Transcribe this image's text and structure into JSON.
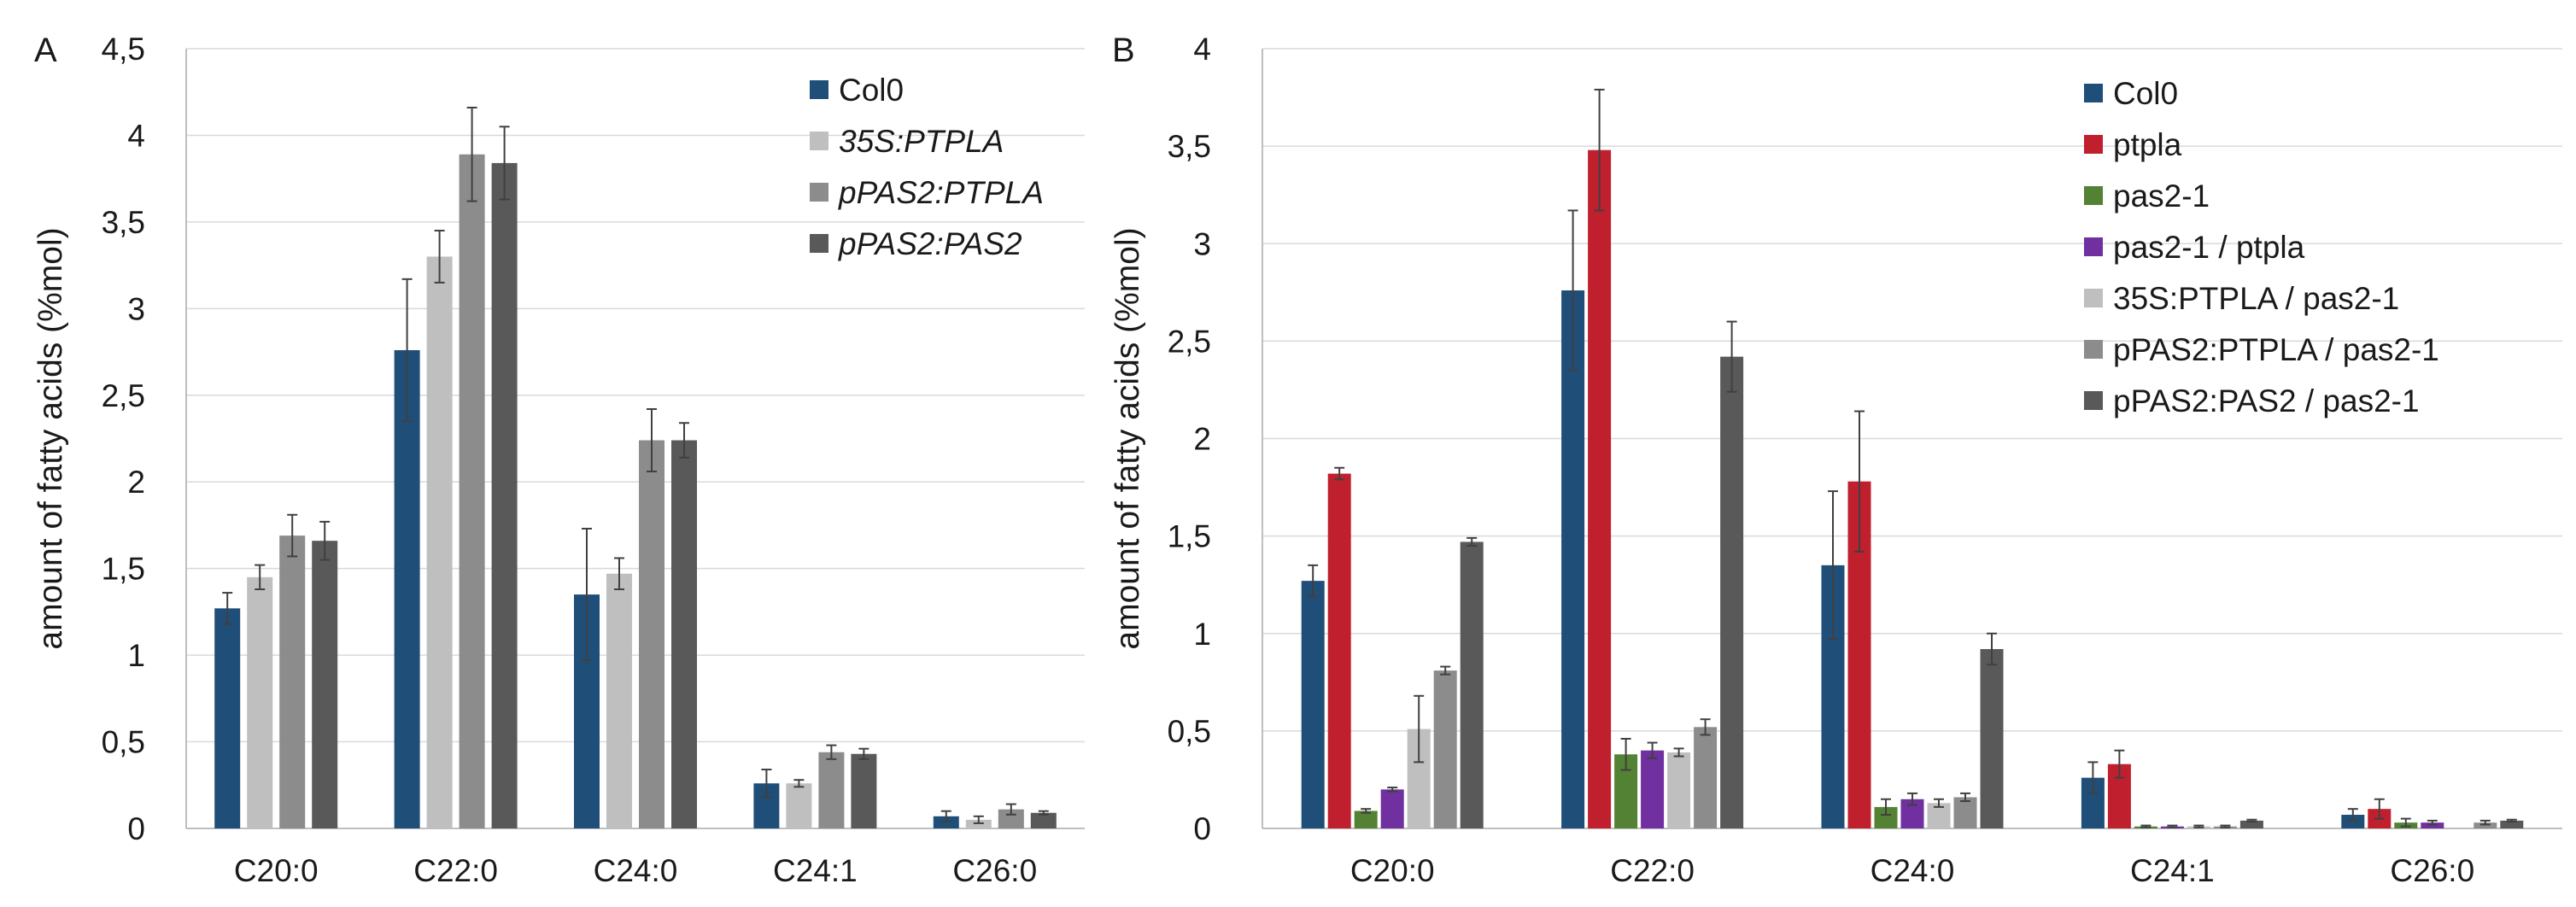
{
  "chart_data": [
    {
      "panel": "A",
      "type": "bar",
      "ylabel": "amount of fatty acids (%mol)",
      "ylim": [
        0,
        4.5
      ],
      "ytick_step": 0.5,
      "yticks": [
        "0",
        "0,5",
        "1",
        "1,5",
        "2",
        "2,5",
        "3",
        "3,5",
        "4",
        "4,5"
      ],
      "grid": true,
      "legend": "top-right",
      "categories": [
        "C20:0",
        "C22:0",
        "C24:0",
        "C24:1",
        "C26:0"
      ],
      "series": [
        {
          "name": "Col0",
          "italic": false,
          "color": "#1f4e79",
          "values": [
            1.27,
            2.76,
            1.35,
            0.26,
            0.07
          ],
          "errors": [
            0.09,
            0.41,
            0.38,
            0.08,
            0.03
          ]
        },
        {
          "name": "35S:PTPLA",
          "italic": true,
          "color": "#bfbfbf",
          "values": [
            1.45,
            3.3,
            1.47,
            0.26,
            0.05
          ],
          "errors": [
            0.07,
            0.15,
            0.09,
            0.02,
            0.02
          ]
        },
        {
          "name": "pPAS2:PTPLA",
          "italic": true,
          "color": "#8c8c8c",
          "values": [
            1.69,
            3.89,
            2.24,
            0.44,
            0.11
          ],
          "errors": [
            0.12,
            0.27,
            0.18,
            0.04,
            0.03
          ]
        },
        {
          "name": "pPAS2:PAS2",
          "italic": true,
          "color": "#595959",
          "values": [
            1.66,
            3.84,
            2.24,
            0.43,
            0.09
          ],
          "errors": [
            0.11,
            0.21,
            0.1,
            0.03,
            0.01
          ]
        }
      ]
    },
    {
      "panel": "B",
      "type": "bar",
      "ylabel": "amount of fatty acids (%mol)",
      "ylim": [
        0,
        4
      ],
      "ytick_step": 0.5,
      "yticks": [
        "0",
        "0,5",
        "1",
        "1,5",
        "2",
        "2,5",
        "3",
        "3,5",
        "4"
      ],
      "grid": true,
      "legend": "top-right",
      "categories": [
        "C20:0",
        "C22:0",
        "C24:0",
        "C24:1",
        "C26:0"
      ],
      "series": [
        {
          "name": "Col0",
          "italic": false,
          "color": "#1f4e79",
          "values": [
            1.27,
            2.76,
            1.35,
            0.26,
            0.07
          ],
          "errors": [
            0.08,
            0.41,
            0.38,
            0.08,
            0.03
          ]
        },
        {
          "name": "ptpla",
          "italic": false,
          "color": "#c0202e",
          "values": [
            1.82,
            3.48,
            1.78,
            0.33,
            0.1
          ],
          "errors": [
            0.03,
            0.31,
            0.36,
            0.07,
            0.05
          ]
        },
        {
          "name": "pas2-1",
          "italic": false,
          "color": "#548235",
          "values": [
            0.09,
            0.38,
            0.11,
            0.01,
            0.03
          ],
          "errors": [
            0.01,
            0.08,
            0.04,
            0.005,
            0.02
          ]
        },
        {
          "name": "pas2-1 / ptpla",
          "italic": false,
          "color": "#7030a0",
          "values": [
            0.2,
            0.4,
            0.15,
            0.01,
            0.03
          ],
          "errors": [
            0.01,
            0.04,
            0.03,
            0.005,
            0.01
          ]
        },
        {
          "name": "35S:PTPLA / pas2-1",
          "italic": false,
          "color": "#bfbfbf",
          "values": [
            0.51,
            0.39,
            0.13,
            0.01,
            0.0
          ],
          "errors": [
            0.17,
            0.02,
            0.02,
            0.005,
            0.0
          ]
        },
        {
          "name": "pPAS2:PTPLA / pas2-1",
          "italic": false,
          "color": "#8c8c8c",
          "values": [
            0.81,
            0.52,
            0.16,
            0.01,
            0.03
          ],
          "errors": [
            0.02,
            0.04,
            0.02,
            0.005,
            0.01
          ]
        },
        {
          "name": "pPAS2:PAS2 / pas2-1",
          "italic": false,
          "color": "#595959",
          "values": [
            1.47,
            2.42,
            0.92,
            0.04,
            0.04
          ],
          "errors": [
            0.02,
            0.18,
            0.08,
            0.005,
            0.005
          ]
        }
      ]
    }
  ]
}
